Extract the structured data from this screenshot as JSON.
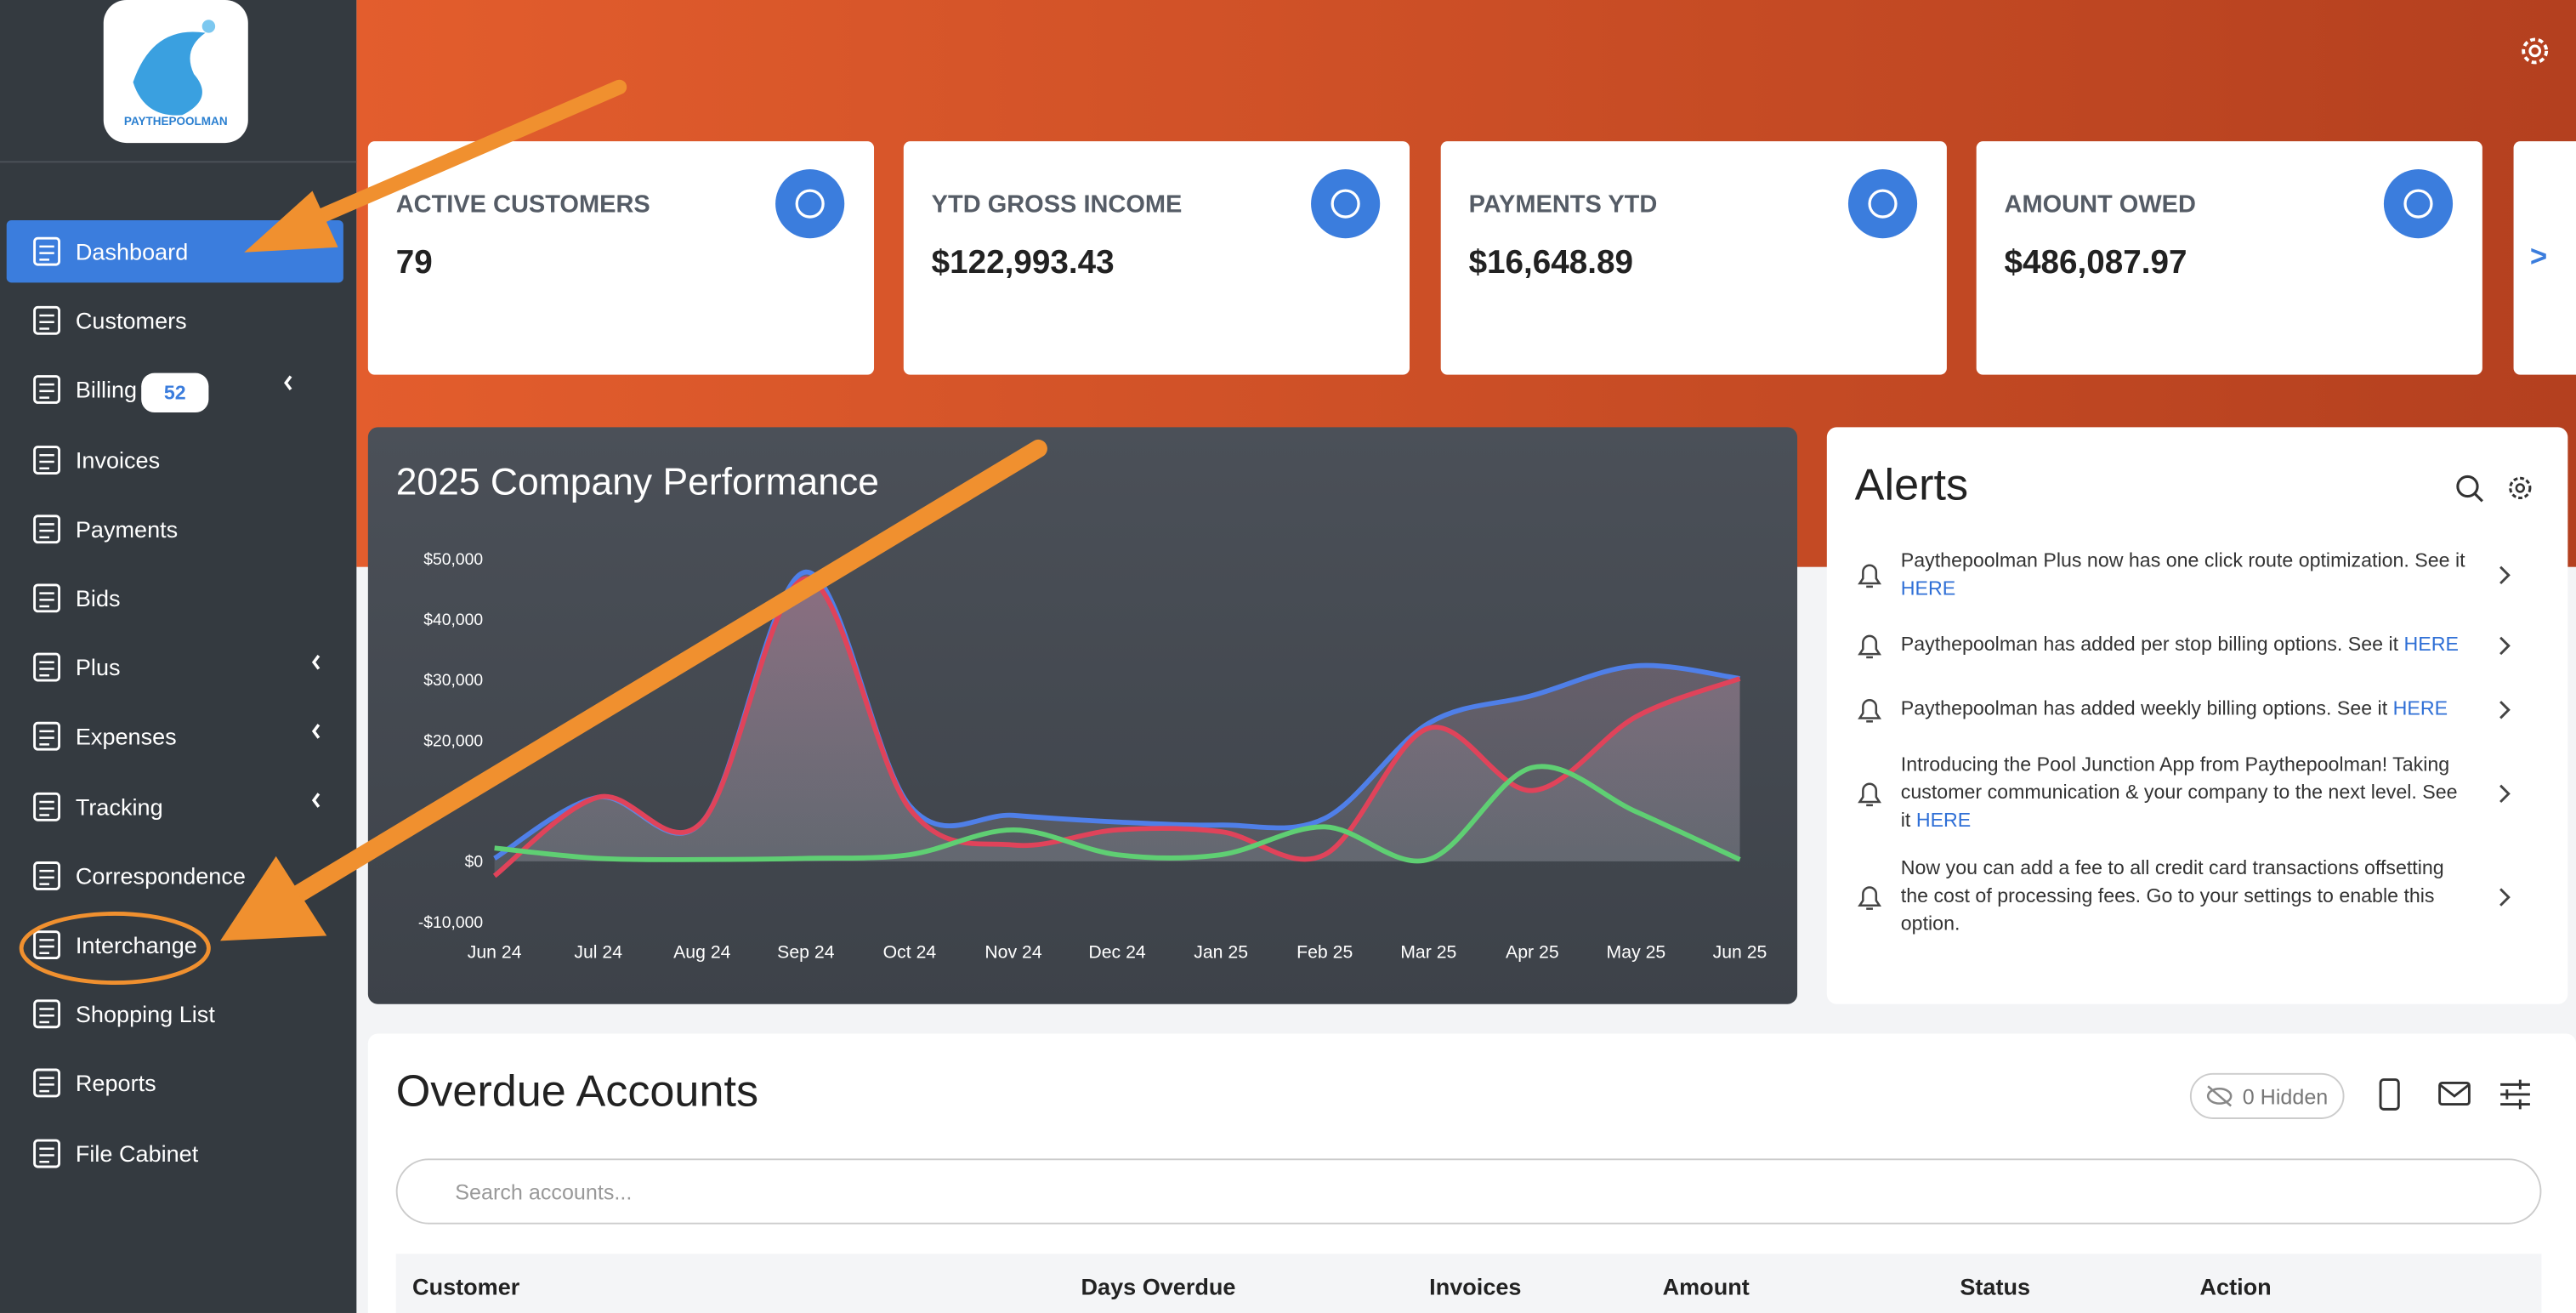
{
  "sidebar": {
    "logo_text": "PAYTHEPOOLMAN",
    "items": [
      "Dashboard",
      "Customers",
      "Billing",
      "Invoices",
      "Payments",
      "Bids",
      "Plus",
      "Expenses",
      "Tracking",
      "Correspondence",
      "Interchange",
      "Shopping List",
      "Reports",
      "File Cabinet"
    ],
    "billing_badge": "52"
  },
  "cards": [
    {
      "label": "ACTIVE CUSTOMERS",
      "value": "79"
    },
    {
      "label": "YTD GROSS INCOME",
      "value": "$122,993.43"
    },
    {
      "label": "PAYMENTS YTD",
      "value": "$16,648.89"
    },
    {
      "label": "AMOUNT OWED",
      "value": "$486,087.97"
    }
  ],
  "next_button": ">",
  "chart_data": {
    "type": "line",
    "title": "2025 Company Performance",
    "categories": [
      "Jun 24",
      "Jul 24",
      "Aug 24",
      "Sep 24",
      "Oct 24",
      "Nov 24",
      "Dec 24",
      "Jan 25",
      "Feb 25",
      "Mar 25",
      "Apr 25",
      "May 25",
      "Jun 25"
    ],
    "series": [
      {
        "color": "#4f7fe8",
        "values": [
          500,
          10600,
          6500,
          47800,
          9200,
          7600,
          6500,
          6000,
          7100,
          22800,
          27400,
          32300,
          30200
        ]
      },
      {
        "color": "#e0435a",
        "values": [
          -2400,
          10600,
          6500,
          46700,
          8700,
          2700,
          5200,
          4900,
          1100,
          22000,
          11700,
          23900,
          30200
        ]
      },
      {
        "color": "#5fcf73",
        "values": [
          2200,
          500,
          300,
          500,
          1100,
          5200,
          1100,
          1100,
          5700,
          300,
          15500,
          8200,
          300
        ]
      }
    ],
    "ylim": [
      -10000,
      50000
    ],
    "yticks": [
      {
        "value": -10000,
        "label": "-$10,000"
      },
      {
        "value": 0,
        "label": "$0"
      },
      {
        "value": 20000,
        "label": "$20,000"
      },
      {
        "value": 30000,
        "label": "$30,000"
      },
      {
        "value": 40000,
        "label": "$40,000"
      },
      {
        "value": 50000,
        "label": "$50,000"
      }
    ],
    "grid": false
  },
  "alerts": {
    "title": "Alerts",
    "items": [
      {
        "text": "Paythepoolman Plus now has one click route optimization. See it",
        "link": "HERE"
      },
      {
        "text": "Paythepoolman has added per stop billing options. See it",
        "link": "HERE"
      },
      {
        "text": "Paythepoolman has added weekly billing options. See it",
        "link": "HERE"
      },
      {
        "text": "Introducing the Pool Junction App from Paythepoolman! Taking customer communication & your company to the next level. See it",
        "link": "HERE"
      },
      {
        "text": "Now you can add a fee to all credit card transactions offsetting the cost of processing fees. Go to your settings to enable this option.",
        "link": null
      }
    ]
  },
  "overdue": {
    "title": "Overdue Accounts",
    "hidden": "0 Hidden",
    "search_placeholder": "Search accounts...",
    "columns": [
      "Customer",
      "Days Overdue",
      "Invoices",
      "Amount",
      "Status",
      "Action"
    ]
  }
}
